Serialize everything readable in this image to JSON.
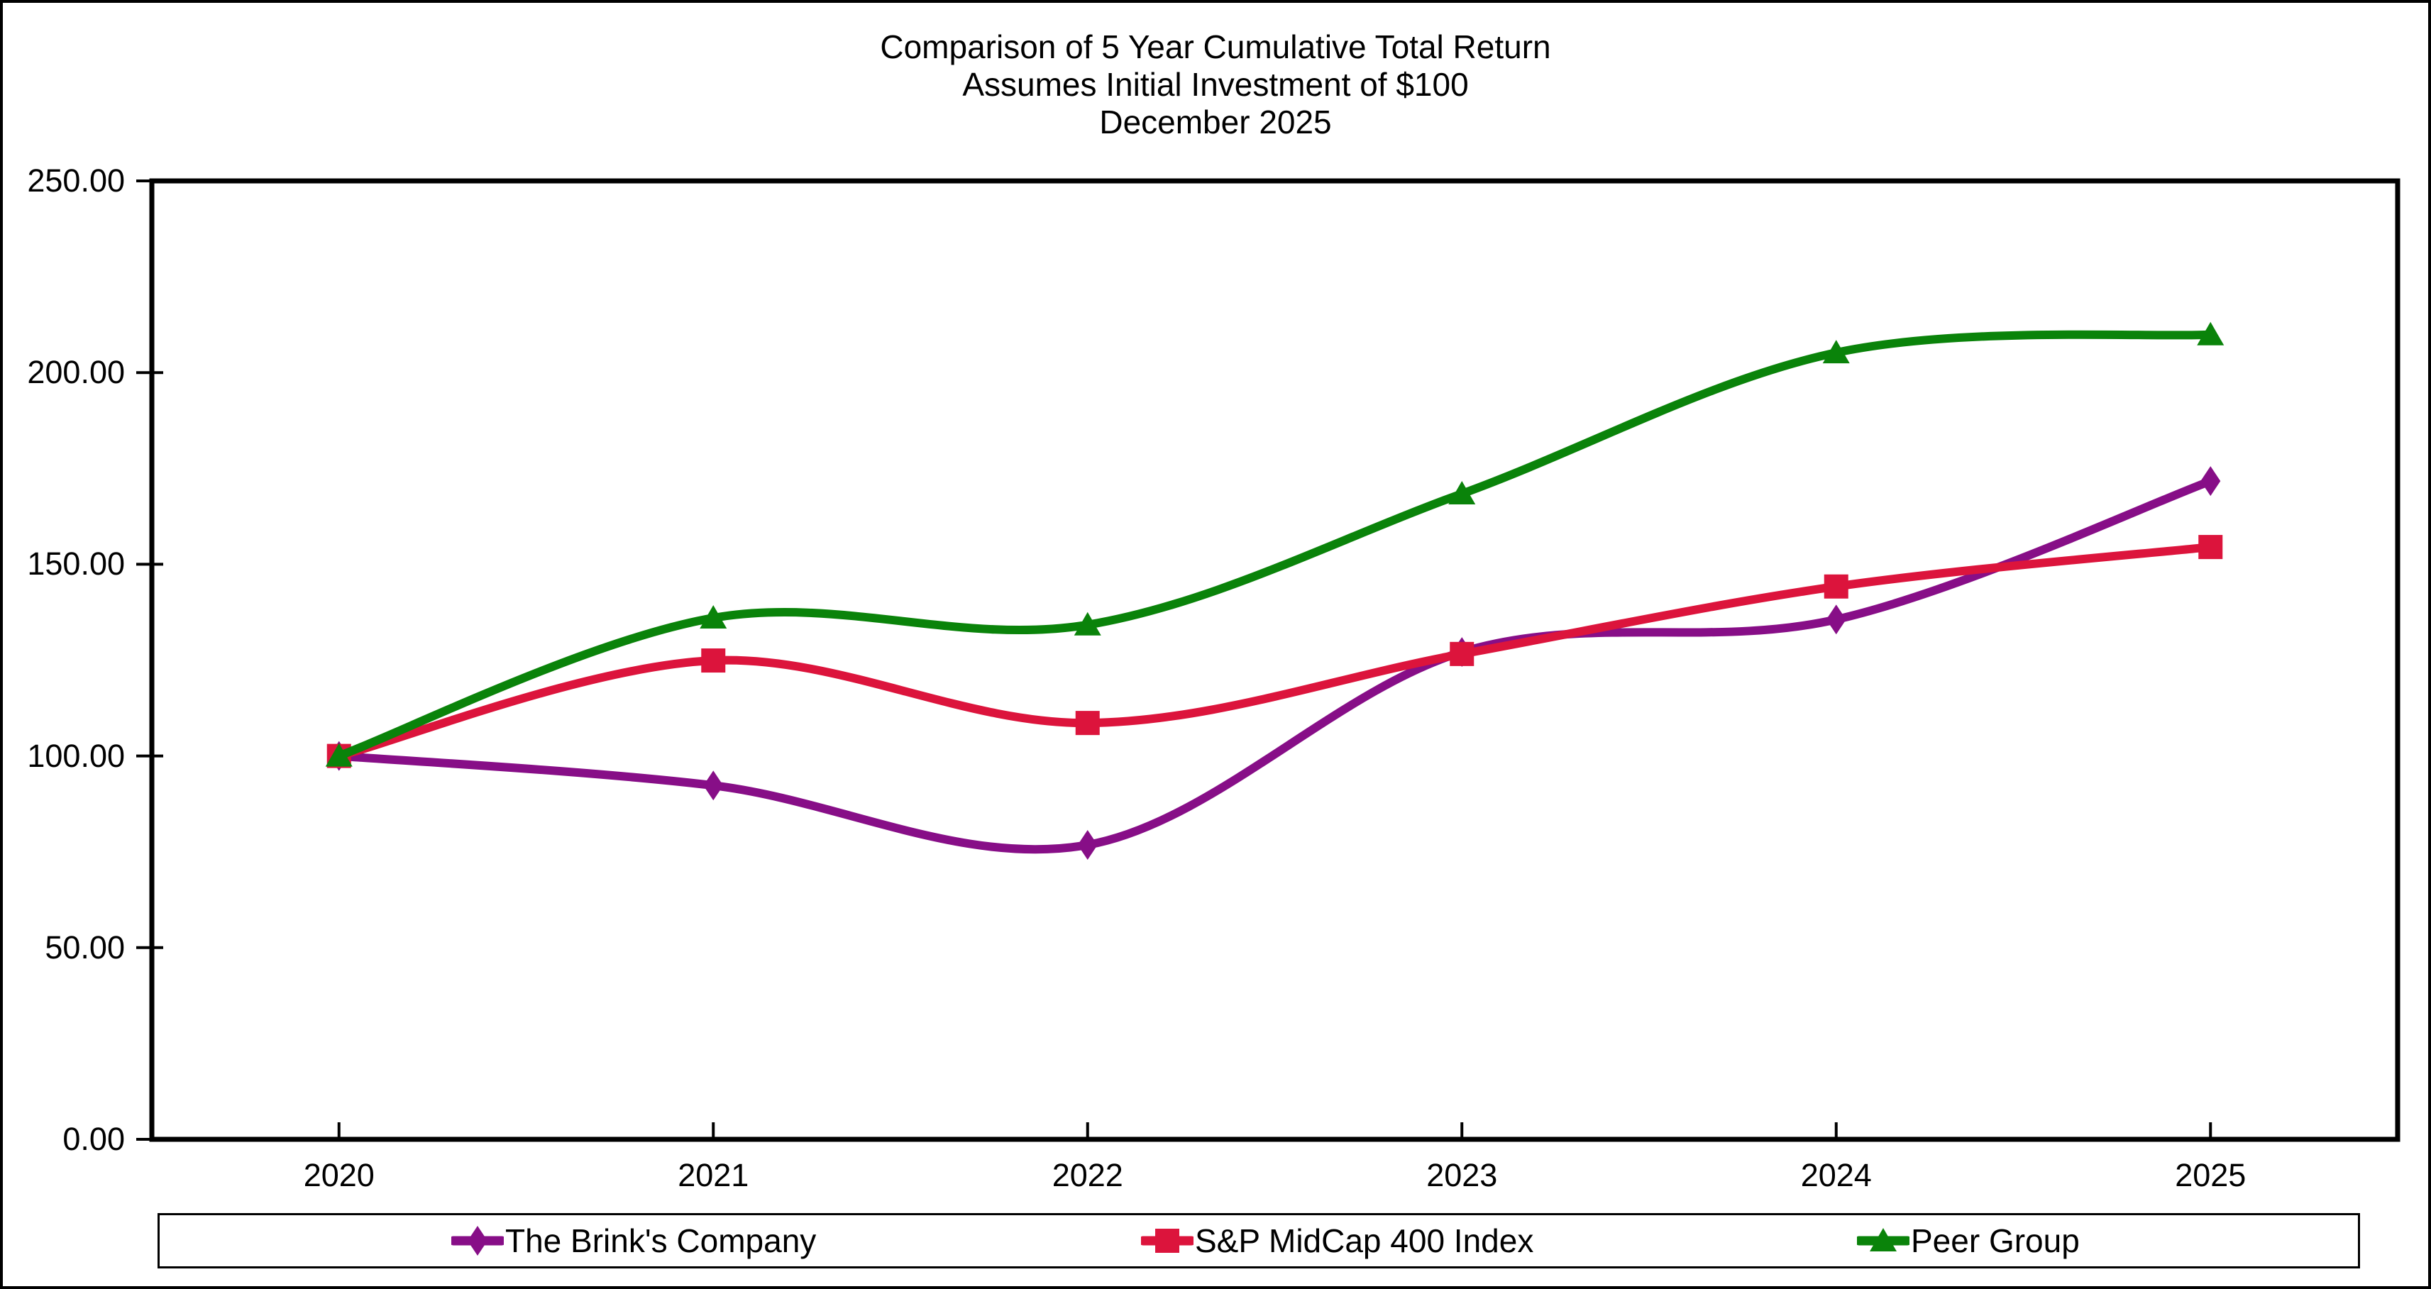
{
  "title": {
    "lines": [
      "Comparison of 5 Year Cumulative Total Return",
      "Assumes Initial Investment of $100",
      "December 2025"
    ]
  },
  "chart_data": {
    "type": "line",
    "title": "Comparison of 5 Year Cumulative Total Return",
    "subtitle": "Assumes Initial Investment of $100",
    "period_label": "December 2025",
    "categories": [
      "2020",
      "2021",
      "2022",
      "2023",
      "2024",
      "2025"
    ],
    "series": [
      {
        "name": "The Brink's Company",
        "color": "#870E87",
        "marker": "diamond",
        "values": [
          100.0,
          92.3,
          76.8,
          127.1,
          135.6,
          171.7
        ]
      },
      {
        "name": "S&P MidCap 400 Index",
        "color": "#DC143C",
        "marker": "square",
        "values": [
          100.0,
          124.9,
          108.6,
          126.6,
          144.2,
          154.5
        ]
      },
      {
        "name": "Peer Group",
        "color": "#0A830A",
        "marker": "triangle",
        "values": [
          100.0,
          136.0,
          134.2,
          168.4,
          205.2,
          209.9
        ]
      }
    ],
    "xlabel": "",
    "ylabel": "",
    "ylim": [
      0,
      250
    ],
    "ytick_step": 50,
    "ytick_labels": [
      "0.00",
      "50.00",
      "100.00",
      "150.00",
      "200.00",
      "250.00"
    ],
    "grid": false,
    "smooth": true,
    "legend_position": "bottom"
  }
}
